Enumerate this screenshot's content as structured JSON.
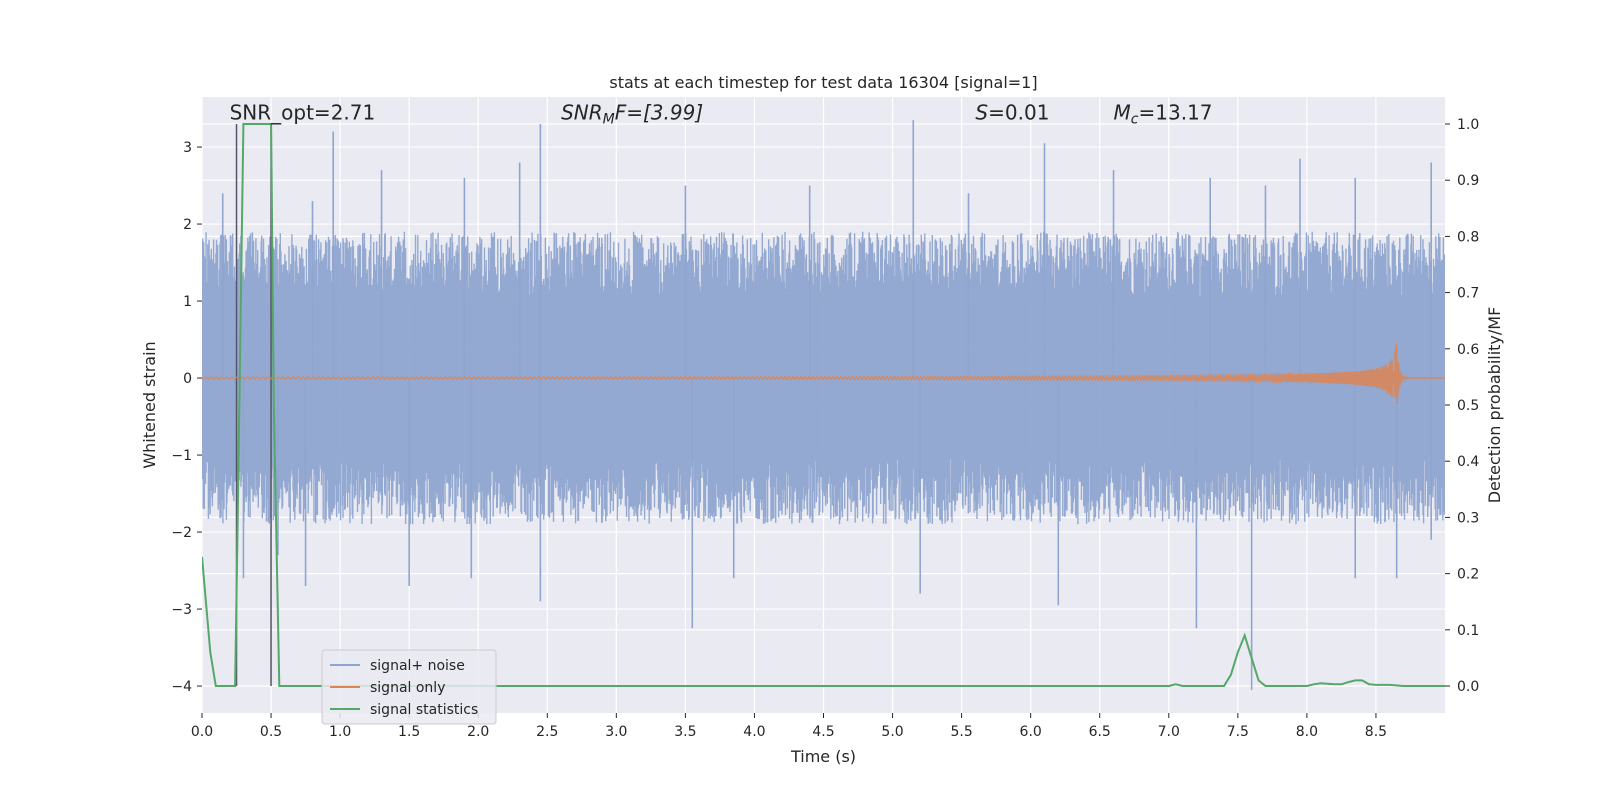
{
  "chart_data": {
    "type": "line",
    "title": "stats at each timestep for test data 16304 [signal=1]",
    "xlabel": "Time (s)",
    "ylabel_left": "Whitened strain",
    "ylabel_right": "Detection probability/MF",
    "xlim": [
      0.0,
      9.0
    ],
    "ylim_left": [
      -4.35,
      3.65
    ],
    "ylim_right": [
      -0.048,
      1.048
    ],
    "x_ticks": [
      "0.0",
      "0.5",
      "1.0",
      "1.5",
      "2.0",
      "2.5",
      "3.0",
      "3.5",
      "4.0",
      "4.5",
      "5.0",
      "5.5",
      "6.0",
      "6.5",
      "7.0",
      "7.5",
      "8.0",
      "8.5"
    ],
    "x_tick_values": [
      0.0,
      0.5,
      1.0,
      1.5,
      2.0,
      2.5,
      3.0,
      3.5,
      4.0,
      4.5,
      5.0,
      5.5,
      6.0,
      6.5,
      7.0,
      7.5,
      8.0,
      8.5
    ],
    "y_ticks_left": [
      "−4",
      "−3",
      "−2",
      "−1",
      "0",
      "1",
      "2",
      "3"
    ],
    "y_tick_values_left": [
      -4,
      -3,
      -2,
      -1,
      0,
      1,
      2,
      3
    ],
    "y_ticks_right": [
      "0.0",
      "0.1",
      "0.2",
      "0.3",
      "0.4",
      "0.5",
      "0.6",
      "0.7",
      "0.8",
      "0.9",
      "1.0"
    ],
    "y_tick_values_right": [
      0.0,
      0.1,
      0.2,
      0.3,
      0.4,
      0.5,
      0.6,
      0.7,
      0.8,
      0.9,
      1.0
    ],
    "grid": true,
    "legend_position": "lower-left",
    "annotations": {
      "snr_opt": {
        "text": "SNR_opt=2.71",
        "x": 0.2,
        "y": 3.45
      },
      "snr_mf_prefix": "SNR",
      "snr_mf_sub": "M",
      "snr_mf_suffix": "F=[3.99]",
      "snr_mf_x": 2.6,
      "s_prefix": "S",
      "s_suffix": "=0.01",
      "s_x": 5.6,
      "mc_prefix": "M",
      "mc_sub": "c",
      "mc_suffix": "=13.17",
      "mc_x": 6.6,
      "annot_y": 3.45
    },
    "vertical_lines": [
      0.25,
      0.5
    ],
    "series": [
      {
        "name": "signal+ noise",
        "color": "#8fa5cf",
        "kind": "noise",
        "envelope_low": -1.9,
        "envelope_high": 1.9,
        "spikes_up": [
          [
            0.15,
            2.4
          ],
          [
            0.8,
            2.3
          ],
          [
            0.95,
            3.2
          ],
          [
            1.3,
            2.7
          ],
          [
            1.9,
            2.6
          ],
          [
            2.3,
            2.8
          ],
          [
            2.45,
            3.3
          ],
          [
            3.5,
            2.5
          ],
          [
            4.4,
            2.5
          ],
          [
            5.15,
            3.35
          ],
          [
            5.55,
            2.4
          ],
          [
            6.1,
            3.05
          ],
          [
            6.6,
            2.7
          ],
          [
            7.3,
            2.6
          ],
          [
            7.7,
            2.5
          ],
          [
            7.95,
            2.85
          ],
          [
            8.35,
            2.6
          ],
          [
            8.9,
            2.8
          ]
        ],
        "spikes_down": [
          [
            0.3,
            -2.6
          ],
          [
            0.55,
            -2.3
          ],
          [
            0.75,
            -2.7
          ],
          [
            1.5,
            -2.7
          ],
          [
            1.95,
            -2.6
          ],
          [
            2.45,
            -2.9
          ],
          [
            3.55,
            -3.25
          ],
          [
            3.85,
            -2.6
          ],
          [
            5.2,
            -2.8
          ],
          [
            6.2,
            -2.95
          ],
          [
            7.2,
            -3.25
          ],
          [
            7.6,
            -4.05
          ],
          [
            8.35,
            -2.6
          ],
          [
            8.65,
            -2.6
          ],
          [
            8.9,
            -2.1
          ]
        ]
      },
      {
        "name": "signal only",
        "color": "#dd8452",
        "kind": "chirp",
        "merger_time": 8.65,
        "peak_amplitude": 0.48
      },
      {
        "name": "signal statistics",
        "color": "#55a868",
        "kind": "line",
        "axis": "right",
        "x": [
          0.0,
          0.06,
          0.1,
          0.24,
          0.26,
          0.3,
          0.3,
          0.5,
          0.52,
          0.56,
          0.6,
          1.0,
          2.0,
          3.0,
          4.0,
          5.0,
          6.0,
          6.9,
          7.0,
          7.05,
          7.1,
          7.2,
          7.4,
          7.45,
          7.5,
          7.55,
          7.6,
          7.65,
          7.7,
          7.8,
          7.9,
          8.0,
          8.05,
          8.1,
          8.2,
          8.25,
          8.3,
          8.35,
          8.4,
          8.45,
          8.5,
          8.6,
          8.7,
          9.0
        ],
        "y": [
          0.23,
          0.06,
          0.0,
          0.0,
          0.32,
          1.0,
          1.0,
          1.0,
          0.5,
          0.0,
          0.0,
          0.0,
          0.0,
          0.0,
          0.0,
          0.0,
          0.0,
          0.0,
          0.0,
          0.003,
          0.0,
          0.0,
          0.0,
          0.02,
          0.06,
          0.09,
          0.05,
          0.01,
          0.0,
          0.0,
          0.0,
          0.0,
          0.003,
          0.005,
          0.003,
          0.003,
          0.007,
          0.01,
          0.01,
          0.003,
          0.002,
          0.002,
          0.0,
          0.0
        ]
      }
    ]
  }
}
